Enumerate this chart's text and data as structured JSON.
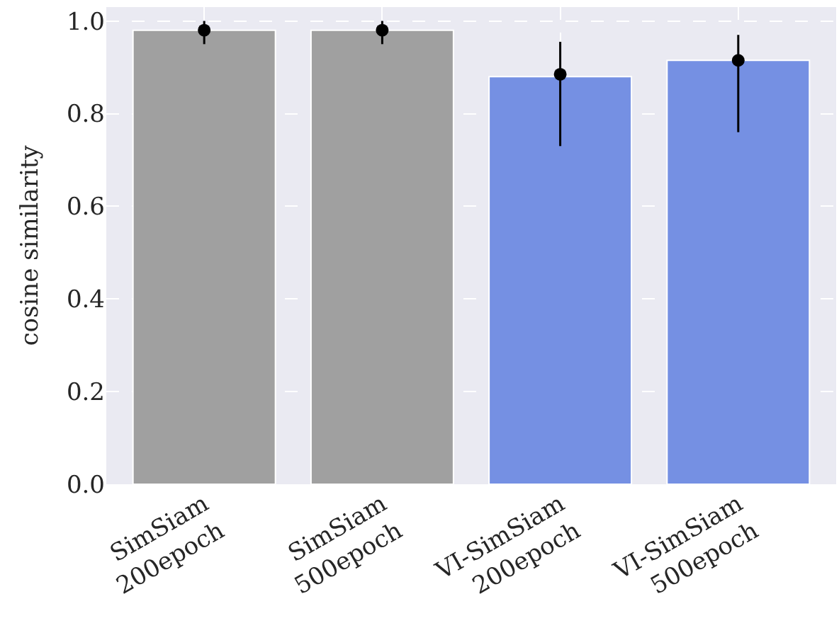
{
  "chart_data": {
    "type": "bar",
    "ylabel": "cosine similarity",
    "categories": [
      "SimSiam\n200epoch",
      "SimSiam\n500epoch",
      "VI-SimSiam\n200epoch",
      "VI-SimSiam\n500epoch"
    ],
    "series": [
      {
        "colors": [
          "#a0a0a0",
          "#a0a0a0",
          "#7590e3",
          "#7590e3"
        ],
        "values": [
          0.98,
          0.98,
          0.88,
          0.915
        ]
      },
      {
        "type": "scatter",
        "color": "#000000",
        "marker": "circle",
        "x": [
          "SimSiam\n200epoch",
          "SimSiam\n500epoch",
          "VI-SimSiam\n200epoch",
          "VI-SimSiam\n500epoch"
        ],
        "values": [
          0.98,
          0.98,
          0.885,
          0.915
        ],
        "errors": [
          [
            0.95,
            1.0
          ],
          [
            0.95,
            1.0
          ],
          [
            0.73,
            0.955
          ],
          [
            0.76,
            0.97
          ]
        ]
      }
    ],
    "ylim": [
      0,
      1.03
    ],
    "yticks": [
      {
        "value": 0,
        "label": "0.0"
      },
      0.2,
      0.4,
      0.6,
      0.8,
      {
        "value": 1,
        "label": "1.0"
      }
    ],
    "grid": true
  }
}
